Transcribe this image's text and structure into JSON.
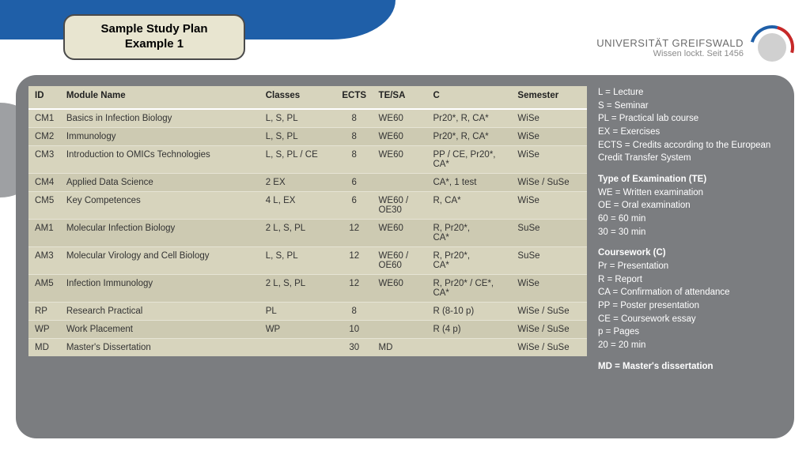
{
  "title_line1": "Sample Study Plan",
  "title_line2": "Example 1",
  "university": {
    "name": "UNIVERSITÄT GREIFSWALD",
    "motto": "Wissen lockt. Seit 1456"
  },
  "table": {
    "columns": [
      "ID",
      "Module Name",
      "Classes",
      "ECTS",
      "TE/SA",
      "C",
      "Semester"
    ],
    "rows": [
      [
        "CM1",
        "Basics in Infection Biology",
        "L, S, PL",
        "8",
        "WE60",
        "Pr20*, R, CA*",
        "WiSe"
      ],
      [
        "CM2",
        "Immunology",
        "L, S, PL",
        "8",
        "WE60",
        "Pr20*, R, CA*",
        "WiSe"
      ],
      [
        "CM3",
        "Introduction to OMICs Technologies",
        "L, S, PL / CE",
        "8",
        "WE60",
        "PP / CE, Pr20*, CA*",
        "WiSe"
      ],
      [
        "CM4",
        "Applied Data Science",
        "2 EX",
        "6",
        "",
        "CA*, 1 test",
        "WiSe / SuSe"
      ],
      [
        "CM5",
        "Key Competences",
        "4 L, EX",
        "6",
        "WE60 / OE30",
        "R, CA*",
        "WiSe"
      ],
      [
        "AM1",
        "Molecular Infection Biology",
        "2 L, S, PL",
        "12",
        "WE60",
        "R, Pr20*,\nCA*",
        "SuSe"
      ],
      [
        "AM3",
        "Molecular Virology and Cell Biology",
        "L, S, PL",
        "12",
        "WE60 / OE60",
        "R, Pr20*,\nCA*",
        "SuSe"
      ],
      [
        "AM5",
        "Infection Immunology",
        "2 L, S, PL",
        "12",
        "WE60",
        "R, Pr20* / CE*,\nCA*",
        "WiSe"
      ],
      [
        "RP",
        "Research Practical",
        "PL",
        "8",
        "",
        "R (8-10 p)",
        "WiSe / SuSe"
      ],
      [
        "WP",
        "Work Placement",
        "WP",
        "10",
        "",
        "R (4 p)",
        "WiSe / SuSe"
      ],
      [
        "MD",
        "Master's Dissertation",
        "",
        "30",
        "MD",
        "",
        "WiSe / SuSe"
      ]
    ]
  },
  "legend": {
    "abbrev": [
      "L = Lecture",
      "S = Seminar",
      "PL = Practical lab course",
      "EX = Exercises",
      "ECTS = Credits according to the European Credit Transfer System"
    ],
    "te_header": "Type of Examination (TE)",
    "te": [
      "WE = Written examination",
      "OE = Oral examination",
      "60 = 60 min",
      "30 = 30 min"
    ],
    "c_header": "Coursework (C)",
    "c": [
      "Pr = Presentation",
      "R = Report",
      "CA = Confirmation of attendance",
      "PP = Poster presentation",
      "CE = Coursework essay",
      "p = Pages",
      "20 = 20 min"
    ],
    "md": "MD = Master's dissertation"
  },
  "colors": {
    "swoosh": "#1f5fa8",
    "card_bg": "#7b7d80",
    "table_bg": "#d7d4bd",
    "table_alt": "#cdcab2",
    "title_pill": "#e8e5d0"
  }
}
